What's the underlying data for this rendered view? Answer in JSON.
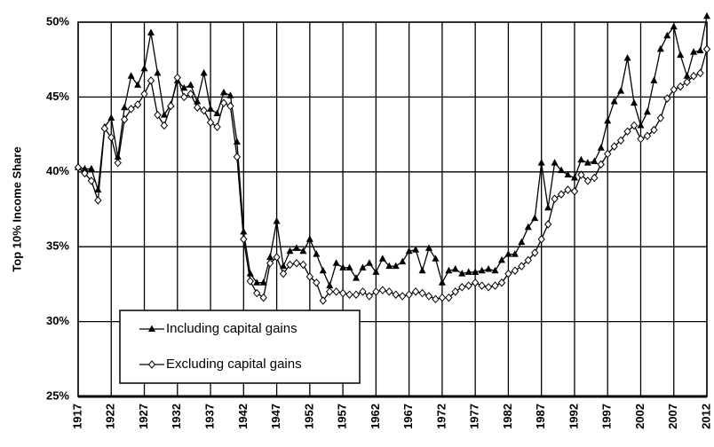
{
  "chart_data": {
    "type": "line",
    "y_label": "Top 10% Income Share",
    "x": [
      1917,
      1918,
      1919,
      1920,
      1921,
      1922,
      1923,
      1924,
      1925,
      1926,
      1927,
      1928,
      1929,
      1930,
      1931,
      1932,
      1933,
      1934,
      1935,
      1936,
      1937,
      1938,
      1939,
      1940,
      1941,
      1942,
      1943,
      1944,
      1945,
      1946,
      1947,
      1948,
      1949,
      1950,
      1951,
      1952,
      1953,
      1954,
      1955,
      1956,
      1957,
      1958,
      1959,
      1960,
      1961,
      1962,
      1963,
      1964,
      1965,
      1966,
      1967,
      1968,
      1969,
      1970,
      1971,
      1972,
      1973,
      1974,
      1975,
      1976,
      1977,
      1978,
      1979,
      1980,
      1981,
      1982,
      1983,
      1984,
      1985,
      1986,
      1987,
      1988,
      1989,
      1990,
      1991,
      1992,
      1993,
      1994,
      1995,
      1996,
      1997,
      1998,
      1999,
      2000,
      2001,
      2002,
      2003,
      2004,
      2005,
      2006,
      2007,
      2008,
      2009,
      2010,
      2011,
      2012
    ],
    "series": [
      {
        "name": "Including capital gains",
        "color": "#000000",
        "marker": "triangle",
        "values": [
          40.3,
          40.2,
          40.2,
          38.8,
          43.0,
          43.6,
          41.0,
          44.3,
          46.4,
          45.8,
          46.9,
          49.3,
          46.6,
          43.8,
          44.5,
          46.1,
          45.6,
          45.8,
          44.7,
          46.6,
          44.2,
          43.9,
          45.3,
          45.1,
          42.0,
          36.0,
          33.2,
          32.6,
          32.6,
          34.3,
          36.7,
          33.7,
          34.7,
          34.9,
          34.7,
          35.5,
          34.5,
          33.4,
          32.4,
          33.9,
          33.6,
          33.6,
          32.9,
          33.6,
          33.9,
          33.3,
          34.2,
          33.7,
          33.7,
          34.0,
          34.7,
          34.8,
          33.4,
          34.9,
          34.2,
          32.6,
          33.4,
          33.5,
          33.2,
          33.3,
          33.3,
          33.4,
          33.5,
          33.4,
          34.1,
          34.5,
          34.5,
          35.3,
          36.3,
          36.9,
          40.6,
          37.6,
          40.6,
          40.1,
          39.8,
          39.6,
          40.8,
          40.6,
          40.7,
          41.6,
          43.4,
          44.7,
          45.4,
          47.6,
          44.6,
          43.1,
          44.0,
          46.1,
          48.2,
          49.1,
          49.7,
          47.8,
          46.4,
          48.0,
          48.1,
          50.4
        ]
      },
      {
        "name": "Excluding capital gains",
        "color": "#000000",
        "marker": "diamond",
        "values": [
          40.3,
          39.9,
          39.4,
          38.1,
          42.9,
          42.3,
          40.6,
          43.5,
          44.2,
          44.5,
          45.2,
          46.1,
          43.8,
          43.1,
          44.4,
          46.3,
          45.0,
          45.2,
          44.3,
          44.1,
          43.3,
          43.0,
          44.6,
          44.4,
          41.0,
          35.5,
          32.7,
          31.9,
          31.6,
          33.9,
          34.3,
          33.2,
          33.8,
          33.9,
          33.8,
          33.0,
          32.6,
          31.4,
          32.0,
          32.0,
          31.9,
          31.8,
          31.8,
          32.0,
          31.7,
          32.0,
          32.1,
          32.0,
          31.8,
          31.7,
          31.8,
          32.0,
          31.9,
          31.7,
          31.5,
          31.6,
          31.6,
          32.0,
          32.3,
          32.4,
          32.6,
          32.4,
          32.3,
          32.4,
          32.6,
          33.2,
          33.4,
          33.7,
          34.1,
          34.6,
          35.5,
          36.5,
          38.2,
          38.5,
          38.8,
          38.7,
          39.8,
          39.4,
          39.6,
          40.5,
          41.2,
          41.7,
          42.1,
          42.7,
          43.1,
          42.2,
          42.4,
          42.8,
          43.6,
          44.9,
          45.5,
          45.7,
          46.0,
          46.4,
          46.6,
          48.2
        ]
      }
    ],
    "xlim": [
      1917,
      2012
    ],
    "xticks": [
      1917,
      1922,
      1927,
      1932,
      1937,
      1942,
      1947,
      1952,
      1957,
      1962,
      1967,
      1972,
      1977,
      1982,
      1987,
      1992,
      1997,
      2002,
      2007,
      2012
    ],
    "ylim": [
      25,
      50
    ],
    "yticks": [
      {
        "value": 25,
        "label": "25%"
      },
      {
        "value": 30,
        "label": "30%"
      },
      {
        "value": 35,
        "label": "35%"
      },
      {
        "value": 40,
        "label": "40%"
      },
      {
        "value": 45,
        "label": "45%"
      },
      {
        "value": 50,
        "label": "50%"
      }
    ],
    "grid": true,
    "legend": "lower left"
  }
}
